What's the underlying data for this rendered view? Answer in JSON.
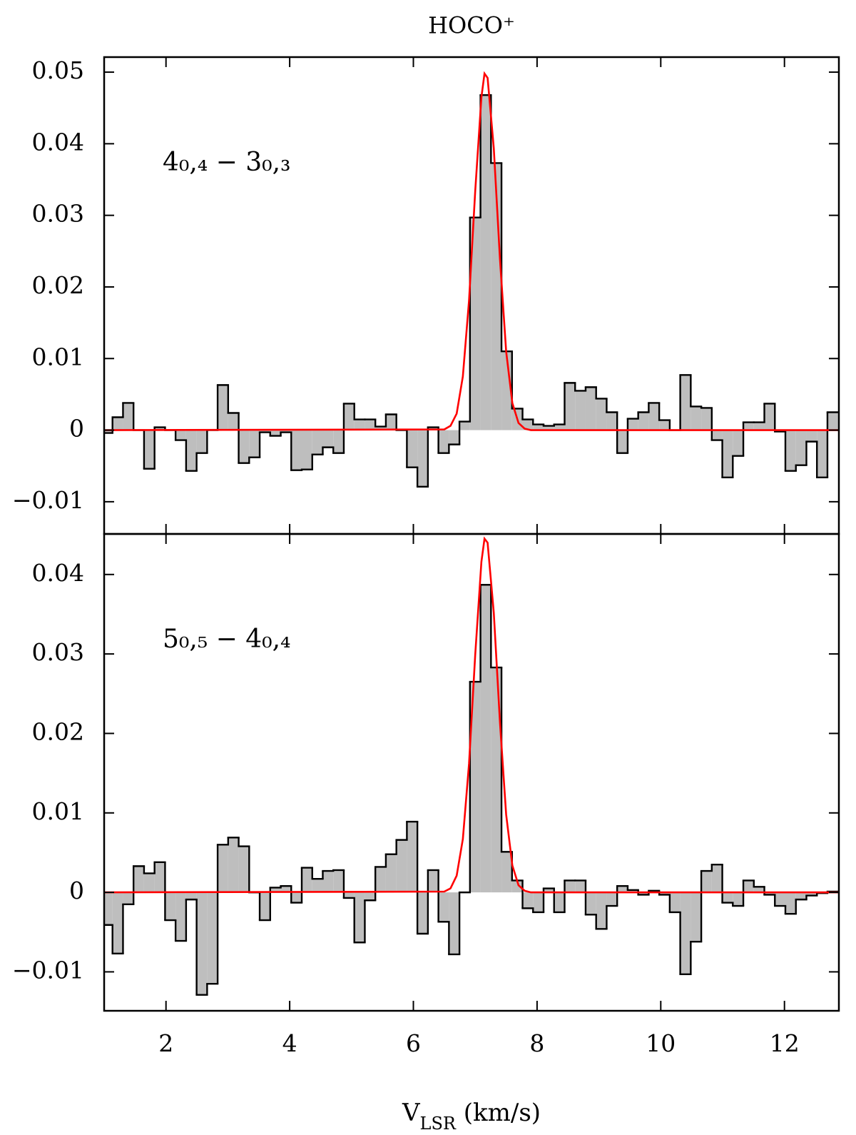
{
  "chart_data": [
    {
      "type": "step",
      "title": "HOCO⁺",
      "annotation": "4₀,₄ − 3₀,₃",
      "xlim": [
        1,
        12.88
      ],
      "xticks": [
        2,
        4,
        6,
        8,
        10,
        12
      ],
      "xtick_labels": false,
      "ylim": [
        -0.0145,
        0.0521
      ],
      "yticks": [
        {
          "value": -0.01,
          "label": "−0.01"
        },
        0,
        0.01,
        0.02,
        0.03,
        0.04,
        0.05
      ],
      "series": [
        {
          "drawstyle": "steps-filled",
          "color": "#000000",
          "fill": "#bebebe",
          "x": [
            1.05,
            1.22,
            1.39,
            1.56,
            1.73,
            1.9,
            2.07,
            2.24,
            2.41,
            2.58,
            2.75,
            2.92,
            3.09,
            3.26,
            3.43,
            3.6,
            3.77,
            3.94,
            4.11,
            4.28,
            4.45,
            4.62,
            4.79,
            4.96,
            5.13,
            5.3,
            5.47,
            5.64,
            5.81,
            5.98,
            6.15,
            6.32,
            6.49,
            6.66,
            6.83,
            7,
            7.17,
            7.34,
            7.51,
            7.68,
            7.85,
            8.02,
            8.19,
            8.36,
            8.53,
            8.7,
            8.87,
            9.04,
            9.21,
            9.38,
            9.55,
            9.72,
            9.89,
            10.06,
            10.23,
            10.4,
            10.57,
            10.74,
            10.91,
            11.08,
            11.25,
            11.42,
            11.59,
            11.76,
            11.93,
            12.1,
            12.27,
            12.44,
            12.61,
            12.78
          ],
          "values": [
            -0.0004,
            0.0018,
            0.0038,
            0.0,
            -0.0054,
            0.0004,
            0.0,
            -0.0014,
            -0.0057,
            -0.0032,
            0.0,
            0.0063,
            0.0024,
            -0.0046,
            -0.0038,
            -0.0003,
            -0.0008,
            -0.0003,
            -0.0056,
            -0.0055,
            -0.0034,
            -0.0024,
            -0.0032,
            0.0037,
            0.0015,
            0.0015,
            0.0005,
            0.0022,
            0.0,
            -0.0052,
            -0.0079,
            0.0004,
            -0.0032,
            -0.002,
            0.0012,
            0.0297,
            0.0468,
            0.0373,
            0.011,
            0.003,
            0.0015,
            0.0008,
            0.0006,
            0.0008,
            0.0066,
            0.0055,
            0.006,
            0.0044,
            0.0025,
            -0.0032,
            0.0016,
            0.0025,
            0.0038,
            0.0014,
            0.0,
            0.0077,
            0.0033,
            0.0031,
            -0.0014,
            -0.0066,
            -0.0036,
            0.0011,
            0.0011,
            0.0037,
            -0.0002,
            -0.0057,
            -0.0049,
            -0.0016,
            -0.0066,
            0.0025
          ]
        },
        {
          "drawstyle": "line",
          "color": "#ff0000",
          "x": [
            1,
            6.5,
            6.6,
            6.7,
            6.8,
            6.9,
            7.0,
            7.1,
            7.15,
            7.2,
            7.3,
            7.4,
            7.5,
            7.6,
            7.7,
            7.8,
            7.9,
            12.88
          ],
          "values": [
            0,
            0.0001,
            0.0006,
            0.0023,
            0.0075,
            0.0181,
            0.0334,
            0.0465,
            0.0498,
            0.0492,
            0.0394,
            0.0239,
            0.011,
            0.0038,
            0.001,
            0.0002,
            0,
            0
          ]
        }
      ]
    },
    {
      "type": "step",
      "annotation": "5₀,₅ − 4₀,₄",
      "xlabel": [
        "V",
        "LSR",
        " (km/s)"
      ],
      "xlim": [
        1,
        12.88
      ],
      "xticks": [
        2,
        4,
        6,
        8,
        10,
        12
      ],
      "xtick_labels": true,
      "ylim": [
        -0.0149,
        0.0451
      ],
      "yticks": [
        {
          "value": -0.01,
          "label": "−0.01"
        },
        0,
        0.01,
        0.02,
        0.03,
        0.04
      ],
      "series": [
        {
          "drawstyle": "steps-filled",
          "color": "#000000",
          "fill": "#bebebe",
          "x": [
            1.05,
            1.22,
            1.39,
            1.56,
            1.73,
            1.9,
            2.07,
            2.24,
            2.41,
            2.58,
            2.75,
            2.92,
            3.09,
            3.26,
            3.43,
            3.6,
            3.77,
            3.94,
            4.11,
            4.28,
            4.45,
            4.62,
            4.79,
            4.96,
            5.13,
            5.3,
            5.47,
            5.64,
            5.81,
            5.98,
            6.15,
            6.32,
            6.49,
            6.66,
            6.83,
            7,
            7.17,
            7.34,
            7.51,
            7.68,
            7.85,
            8.02,
            8.19,
            8.36,
            8.53,
            8.7,
            8.87,
            9.04,
            9.21,
            9.38,
            9.55,
            9.72,
            9.89,
            10.06,
            10.23,
            10.4,
            10.57,
            10.74,
            10.91,
            11.08,
            11.25,
            11.42,
            11.59,
            11.76,
            11.93,
            12.1,
            12.27,
            12.44,
            12.61,
            12.78
          ],
          "values": [
            -0.0041,
            -0.0077,
            -0.0015,
            0.0033,
            0.0024,
            0.0038,
            -0.0035,
            -0.0061,
            -0.0009,
            -0.0129,
            -0.0115,
            0.006,
            0.0069,
            0.0058,
            0.0,
            -0.0035,
            0.0006,
            0.0008,
            -0.0013,
            0.0031,
            0.0017,
            0.0027,
            0.0028,
            -0.0007,
            -0.0063,
            -0.001,
            0.0032,
            0.0048,
            0.0066,
            0.0089,
            -0.0052,
            0.0028,
            -0.0037,
            -0.0078,
            0.0,
            0.0265,
            0.0387,
            0.0283,
            0.0051,
            0.0015,
            -0.002,
            -0.0025,
            0.0005,
            -0.0025,
            0.0015,
            0.0015,
            -0.0028,
            -0.0046,
            -0.0017,
            0.0008,
            0.0003,
            -0.0003,
            0.0002,
            -0.0003,
            -0.0025,
            -0.0103,
            -0.0062,
            0.0027,
            0.0035,
            -0.0013,
            -0.0017,
            0.0015,
            0.0007,
            -0.0003,
            -0.0017,
            -0.0027,
            -0.0009,
            -0.0004,
            -0.0001,
            0.0001
          ]
        },
        {
          "drawstyle": "line",
          "color": "#ff0000",
          "x": [
            1,
            6.5,
            6.6,
            6.7,
            6.8,
            6.9,
            7.0,
            7.1,
            7.15,
            7.2,
            7.3,
            7.4,
            7.5,
            7.6,
            7.7,
            7.8,
            7.9,
            12.88
          ],
          "values": [
            0,
            0.0001,
            0.0005,
            0.0021,
            0.0067,
            0.0162,
            0.0299,
            0.0416,
            0.0445,
            0.044,
            0.0352,
            0.0214,
            0.0098,
            0.0034,
            0.0009,
            0.0002,
            0,
            0
          ]
        }
      ]
    }
  ]
}
